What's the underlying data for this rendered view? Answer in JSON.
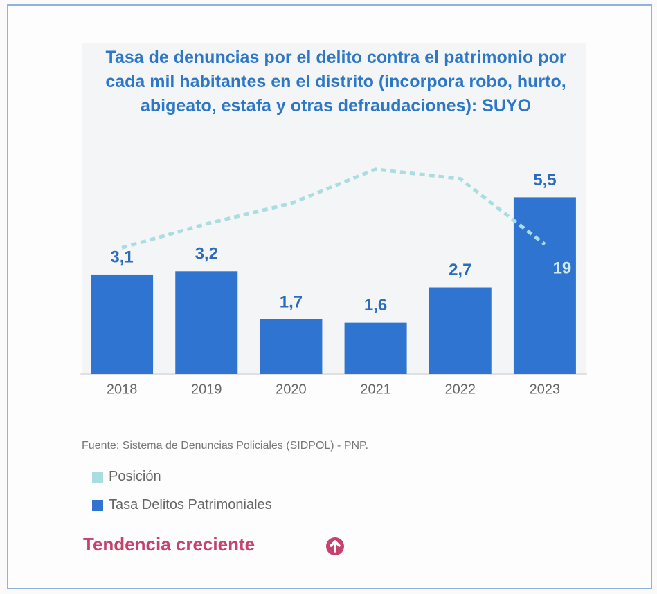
{
  "chart_data": {
    "type": "bar",
    "title": "Tasa de denuncias por el delito contra el patrimonio por cada mil habitantes en el distrito (incorpora robo, hurto, abigeato, estafa y otras defraudaciones): SUYO",
    "categories": [
      "2018",
      "2019",
      "2020",
      "2021",
      "2022",
      "2023"
    ],
    "series": [
      {
        "name": "Posición",
        "type": "line",
        "axis": "y2",
        "color": "#a9dde2",
        "values": [
          18.5,
          22,
          25,
          30,
          28.6,
          19
        ],
        "show_labels": [
          false,
          false,
          false,
          false,
          false,
          true
        ]
      },
      {
        "name": "Tasa Delitos Patrimoniales",
        "type": "bar",
        "color": "#2f74d0",
        "values": [
          3.1,
          3.2,
          1.7,
          1.6,
          2.7,
          5.5
        ],
        "value_labels": [
          "3,1",
          "3,2",
          "1,7",
          "1,6",
          "2,7",
          "5,5"
        ]
      }
    ],
    "ylim": [
      0,
      6.8
    ],
    "y2lim": [
      0,
      32
    ],
    "source": "Fuente: Sistema de Denuncias Policiales (SIDPOL) - PNP.",
    "trend": "Tendencia creciente"
  }
}
